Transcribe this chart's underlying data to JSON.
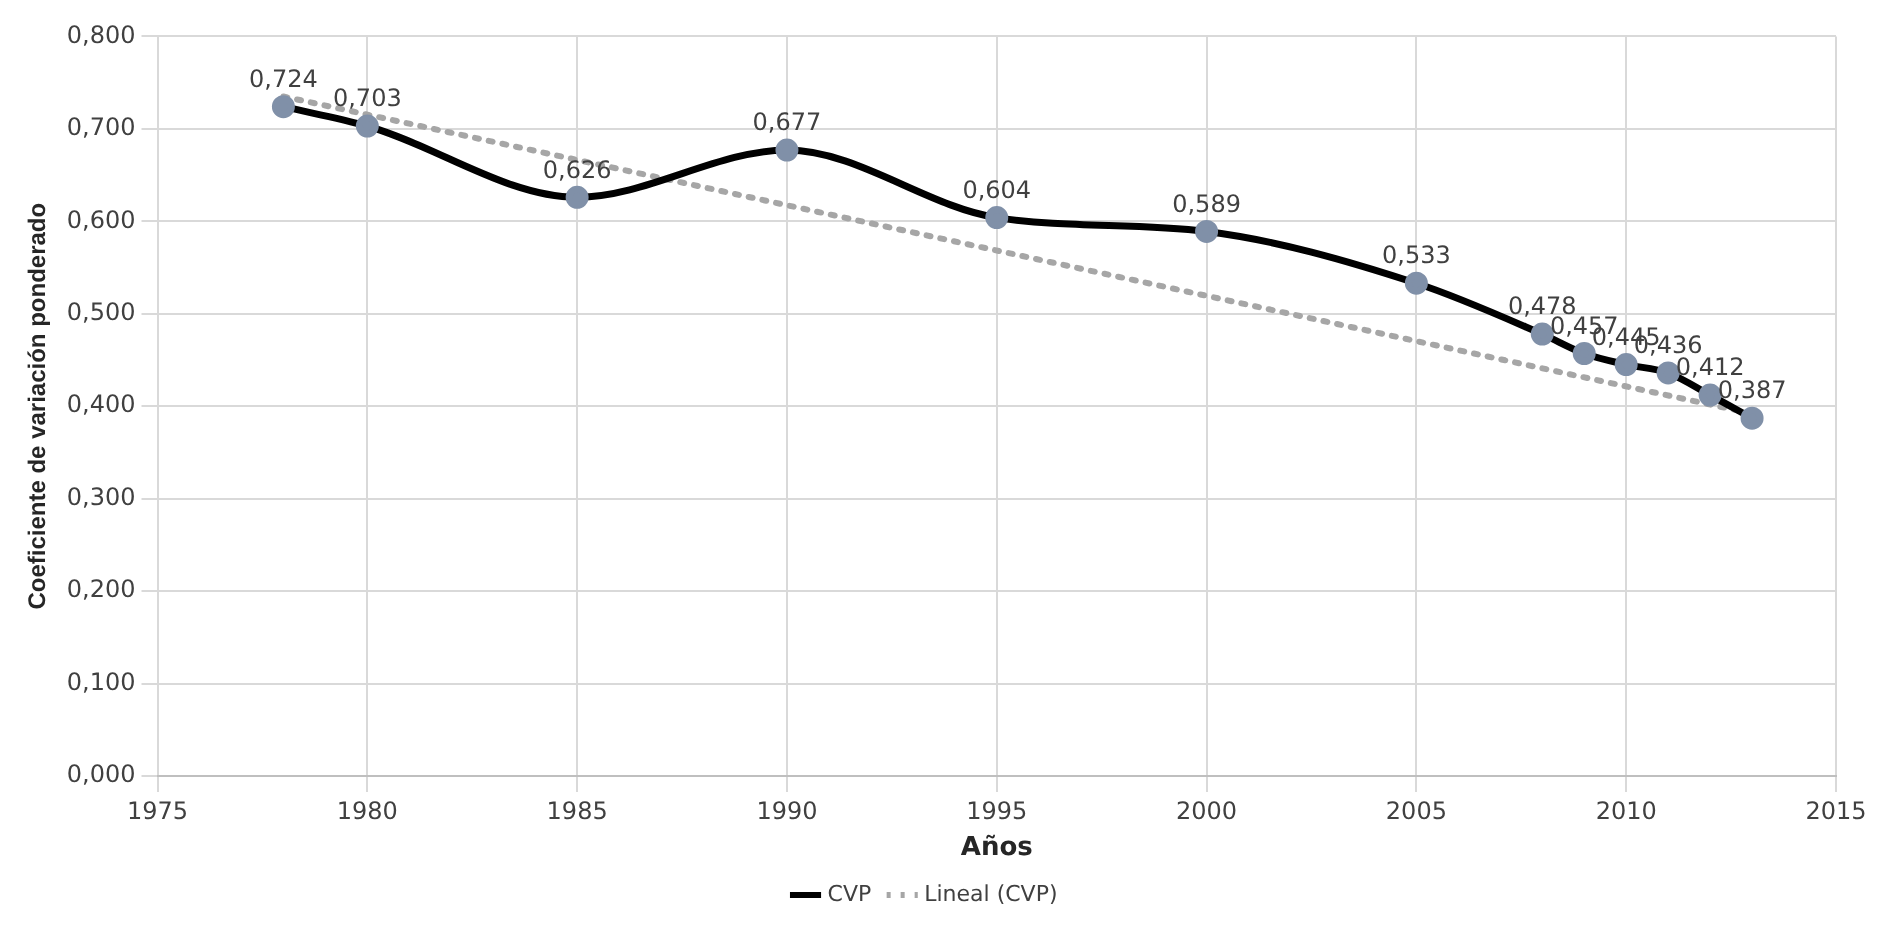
{
  "chart_data": {
    "type": "line",
    "xlabel": "Años",
    "ylabel": "Coeficiente de variación ponderado",
    "x": [
      1978,
      1980,
      1985,
      1990,
      1995,
      2000,
      2005,
      2008,
      2009,
      2010,
      2011,
      2012,
      2013
    ],
    "series": [
      {
        "name": "CVP",
        "color": "#000000",
        "marker": "circle",
        "line_style": "solid",
        "values": [
          0.724,
          0.703,
          0.626,
          0.677,
          0.604,
          0.589,
          0.533,
          0.478,
          0.457,
          0.445,
          0.436,
          0.412,
          0.387
        ],
        "value_labels": [
          "0,724",
          "0,703",
          "0,626",
          "0,677",
          "0,604",
          "0,589",
          "0,533",
          "0,478",
          "0,457",
          "0,445",
          "0,436",
          "0,412",
          "0,387"
        ]
      },
      {
        "name": "Lineal (CVP)",
        "type": "line",
        "color": "#a6a6a6",
        "marker": "none",
        "line_style": "dotted",
        "x": [
          1978,
          2013
        ],
        "values": [
          0.735,
          0.392
        ]
      }
    ],
    "xlim": [
      1975,
      2015
    ],
    "xticks": [
      1975,
      1980,
      1985,
      1990,
      1995,
      2000,
      2005,
      2010,
      2015
    ],
    "ylim": [
      0,
      0.8
    ],
    "yticks": [
      {
        "value": 0,
        "label": "0,000"
      },
      {
        "value": 0.1,
        "label": "0,100"
      },
      {
        "value": 0.2,
        "label": "0,200"
      },
      {
        "value": 0.3,
        "label": "0,300"
      },
      {
        "value": 0.4,
        "label": "0,400"
      },
      {
        "value": 0.5,
        "label": "0,500"
      },
      {
        "value": 0.6,
        "label": "0,600"
      },
      {
        "value": 0.7,
        "label": "0,700"
      },
      {
        "value": 0.8,
        "label": "0,800"
      }
    ],
    "grid": true,
    "legend": "bottom"
  }
}
